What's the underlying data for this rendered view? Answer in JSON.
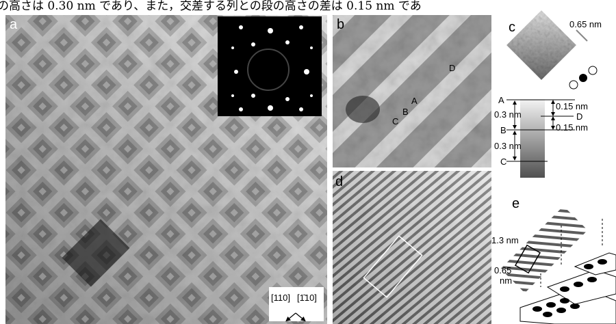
{
  "caption_line": "の高さは 0.30 nm であり、また，交差する列との段の高さの差は 0.15 nm であ",
  "panel_a": {
    "label": "a",
    "directions": [
      "[110]",
      "[1̄10]"
    ]
  },
  "panel_b": {
    "label": "b",
    "points": [
      "A",
      "B",
      "C",
      "D"
    ]
  },
  "panel_c": {
    "label": "c",
    "width": "0.65 nm",
    "levels": [
      "A",
      "B",
      "C",
      "D"
    ],
    "heights": [
      "0.3 nm",
      "0.15 nm",
      "0.3 nm",
      "0.15 nm"
    ]
  },
  "panel_d": {
    "label": "d"
  },
  "panel_e": {
    "label": "e",
    "width": "1.3 nm",
    "length": [
      "0.65",
      "nm"
    ]
  }
}
